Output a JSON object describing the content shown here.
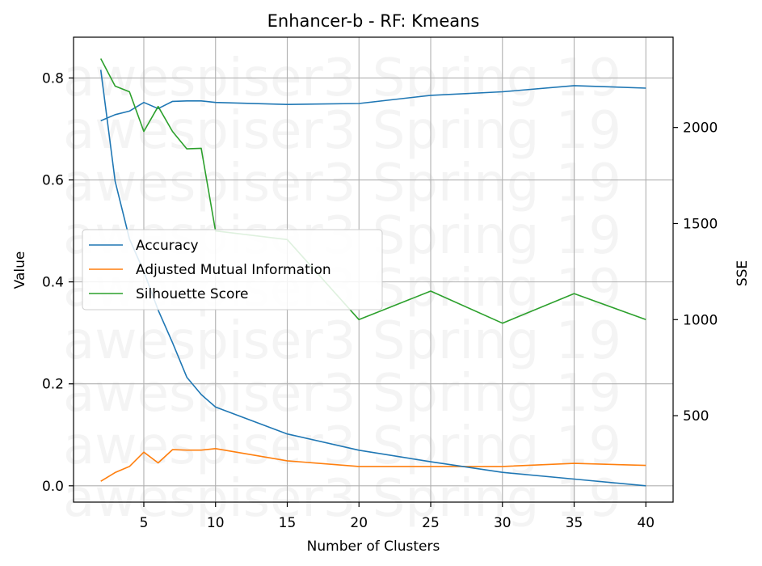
{
  "chart_data": {
    "type": "line",
    "title": "Enhancer-b - RF: Kmeans",
    "xlabel": "Number of Clusters",
    "ylabel": "Value",
    "y2label": "SSE",
    "xlim": [
      0.1,
      41.9
    ],
    "ylim": [
      -0.032,
      0.88
    ],
    "y2lim": [
      50,
      2470
    ],
    "xticks": [
      5,
      10,
      15,
      20,
      25,
      30,
      35,
      40
    ],
    "yticks": [
      0.0,
      0.2,
      0.4,
      0.6,
      0.8
    ],
    "y2ticks": [
      500,
      1000,
      1500,
      2000
    ],
    "grid": true,
    "legend_position": "center-left",
    "x": [
      2,
      3,
      4,
      5,
      6,
      7,
      8,
      9,
      10,
      15,
      20,
      25,
      30,
      35,
      40
    ],
    "series": [
      {
        "name": "Accuracy",
        "axis": "left",
        "color": "#1f77b4",
        "values": [
          0.716,
          0.728,
          0.735,
          0.752,
          0.74,
          0.754,
          0.755,
          0.755,
          0.752,
          0.748,
          0.75,
          0.766,
          0.773,
          0.785,
          0.78
        ]
      },
      {
        "name": "Adjusted Mutual Information",
        "axis": "left",
        "color": "#ff7f0e",
        "values": [
          0.009,
          0.026,
          0.038,
          0.066,
          0.045,
          0.071,
          0.07,
          0.07,
          0.073,
          0.049,
          0.038,
          0.038,
          0.038,
          0.044,
          0.04
        ]
      },
      {
        "name": "Silhouette Score",
        "axis": "left",
        "color": "#2ca02c",
        "values": [
          0.838,
          0.784,
          0.773,
          0.695,
          0.744,
          0.695,
          0.661,
          0.662,
          0.5,
          0.483,
          0.326,
          0.382,
          0.319,
          0.377,
          0.326
        ]
      },
      {
        "name": "",
        "axis": "right",
        "color": "#1f77b4",
        "values": [
          2300,
          1720,
          1420,
          1250,
          1050,
          880,
          700,
          610,
          545,
          405,
          320,
          260,
          205,
          170,
          135
        ]
      }
    ],
    "watermark": "awespiser3 Spring 19"
  }
}
